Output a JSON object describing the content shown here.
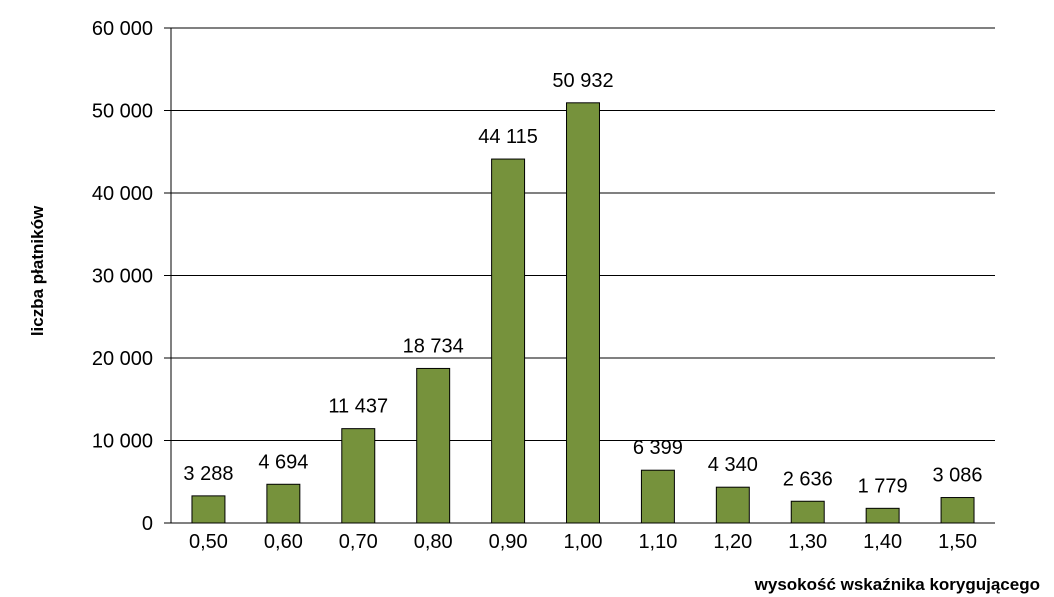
{
  "chart_data": {
    "type": "bar",
    "title": "",
    "xlabel": "wysokość wskaźnika korygującego",
    "ylabel": "liczba płatników",
    "categories": [
      "0,50",
      "0,60",
      "0,70",
      "0,80",
      "0,90",
      "1,00",
      "1,10",
      "1,20",
      "1,30",
      "1,40",
      "1,50"
    ],
    "values": [
      3288,
      4694,
      11437,
      18734,
      44115,
      50932,
      6399,
      4340,
      2636,
      1779,
      3086
    ],
    "value_labels": [
      "3 288",
      "4 694",
      "11 437",
      "18 734",
      "44 115",
      "50 932",
      "6 399",
      "4 340",
      "2 636",
      "1 779",
      "3 086"
    ],
    "ylim": [
      0,
      60000
    ],
    "yticks": [
      0,
      10000,
      20000,
      30000,
      40000,
      50000,
      60000
    ],
    "ytick_labels": [
      "0",
      "10 000",
      "20 000",
      "30 000",
      "40 000",
      "50 000",
      "60 000"
    ],
    "grid": true,
    "bar_color": "#76923c",
    "bar_edge_color": "#000000"
  }
}
